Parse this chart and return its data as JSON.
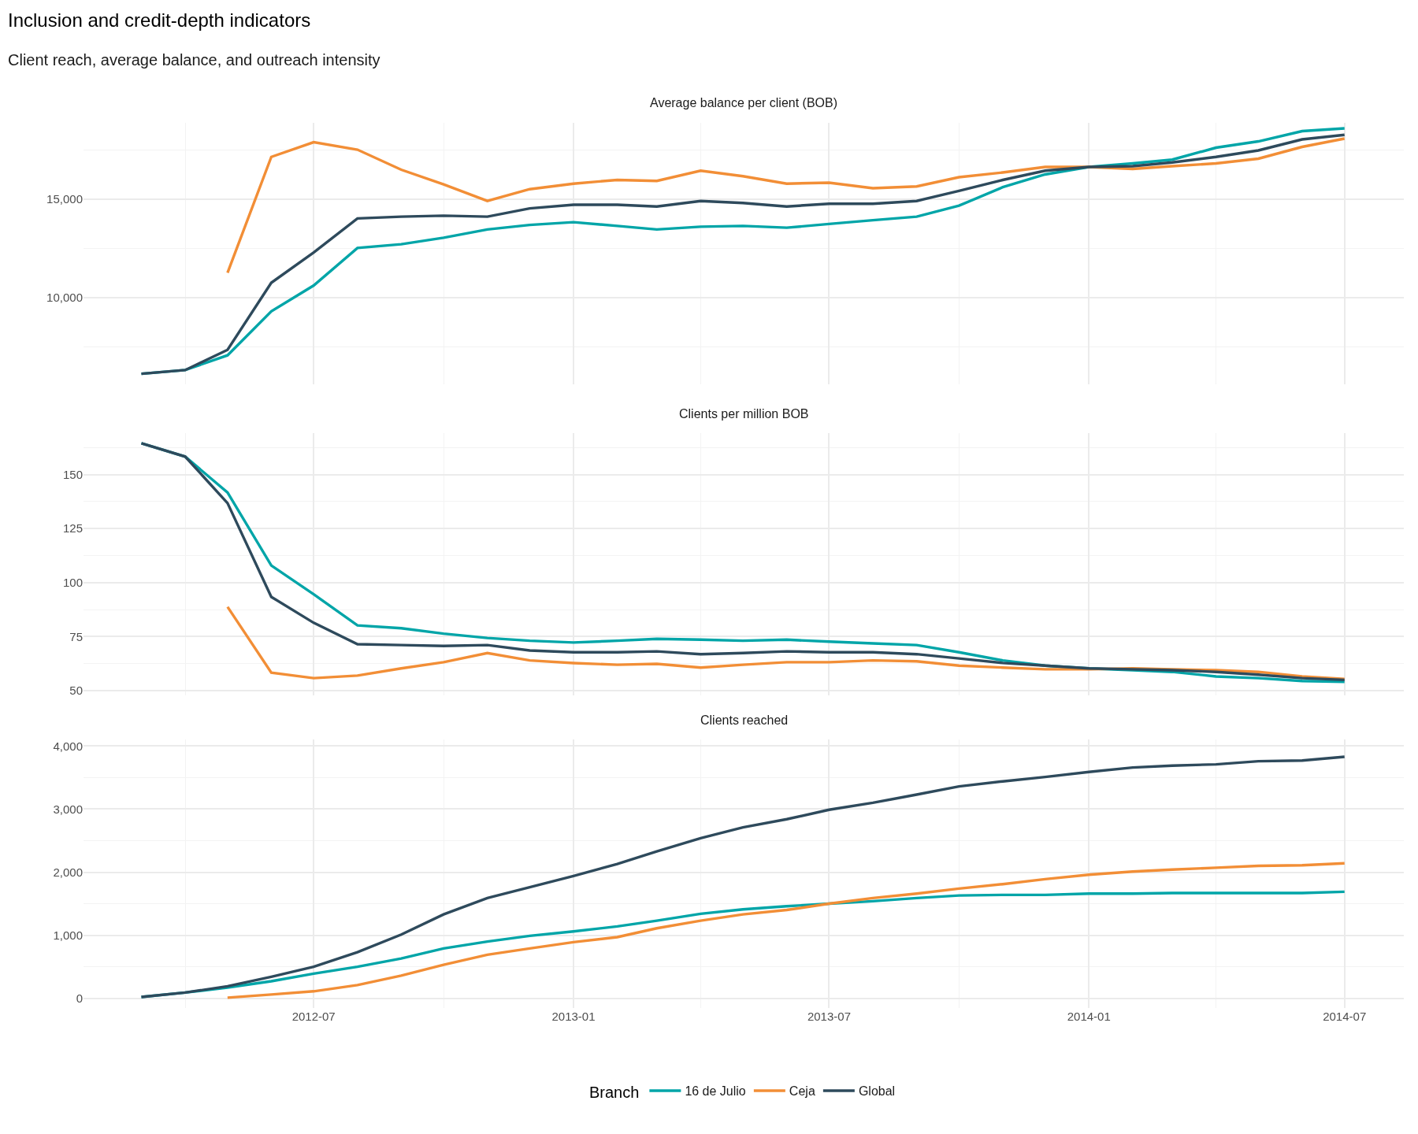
{
  "chart_data": [
    {
      "type": "line",
      "title": "Average balance per client (BOB)",
      "legend_title": "Branch",
      "legend": "bottom",
      "annotations": [
        "Inclusion and credit-depth indicators",
        "Client reach, average balance, and outreach intensity"
      ],
      "x": [
        "2012-03",
        "2012-04",
        "2012-05",
        "2012-06",
        "2012-07",
        "2012-08",
        "2012-09",
        "2012-10",
        "2012-11",
        "2012-12",
        "2013-01",
        "2013-02",
        "2013-03",
        "2013-04",
        "2013-05",
        "2013-06",
        "2013-07",
        "2013-08",
        "2013-09",
        "2013-10",
        "2013-11",
        "2013-12",
        "2014-01",
        "2014-02",
        "2014-03",
        "2014-04",
        "2014-05",
        "2014-06",
        "2014-07"
      ],
      "series": [
        {
          "name": "16 de Julio",
          "color": "#00a5a8",
          "values": [
            6120,
            6310,
            7060,
            9300,
            10610,
            12520,
            12710,
            13040,
            13460,
            13690,
            13830,
            13640,
            13460,
            13600,
            13640,
            13550,
            13740,
            13930,
            14110,
            14670,
            15610,
            16260,
            16640,
            16820,
            17010,
            17620,
            17940,
            18460,
            18600
          ]
        },
        {
          "name": "Ceja",
          "color": "#f28e36",
          "values": [
            null,
            null,
            11260,
            17150,
            17900,
            17520,
            16500,
            15750,
            14910,
            15510,
            15790,
            15980,
            15930,
            16450,
            16170,
            15790,
            15840,
            15560,
            15650,
            16120,
            16360,
            16640,
            16640,
            16540,
            16680,
            16820,
            17060,
            17660,
            18080
          ]
        },
        {
          "name": "Global",
          "color": "#2e4a5c",
          "values": [
            6120,
            6310,
            7340,
            10750,
            12290,
            14020,
            14110,
            14160,
            14110,
            14530,
            14720,
            14720,
            14630,
            14910,
            14810,
            14630,
            14770,
            14770,
            14910,
            15420,
            15980,
            16450,
            16640,
            16680,
            16870,
            17150,
            17480,
            18040,
            18270
          ]
        }
      ],
      "xlim": [
        "2012-01-20",
        "2014-08-12"
      ],
      "xticks": [
        "2012-07",
        "2013-01",
        "2013-07",
        "2014-01",
        "2014-07"
      ],
      "ylim": [
        5600,
        18900
      ],
      "yticks": [
        {
          "value": 10000,
          "label": "10,000"
        },
        {
          "value": 15000,
          "label": "15,000"
        }
      ],
      "grid": true,
      "tick_labels": "y"
    },
    {
      "type": "line",
      "title": "Clients per million BOB",
      "legend": "bottom",
      "x": [
        "2012-03",
        "2012-04",
        "2012-05",
        "2012-06",
        "2012-07",
        "2012-08",
        "2012-09",
        "2012-10",
        "2012-11",
        "2012-12",
        "2013-01",
        "2013-02",
        "2013-03",
        "2013-04",
        "2013-05",
        "2013-06",
        "2013-07",
        "2013-08",
        "2013-09",
        "2013-10",
        "2013-11",
        "2013-12",
        "2014-01",
        "2014-02",
        "2014-03",
        "2014-04",
        "2014-05",
        "2014-06",
        "2014-07"
      ],
      "series": [
        {
          "name": "16 de Julio",
          "color": "#00a5a8",
          "values": [
            164.5,
            158.3,
            141.7,
            107.9,
            94.6,
            80.2,
            78.9,
            76.4,
            74.4,
            73.1,
            72.3,
            73.1,
            74.0,
            73.6,
            73.1,
            73.6,
            72.7,
            71.9,
            71.1,
            67.8,
            64.0,
            61.6,
            60.3,
            59.5,
            58.7,
            56.6,
            55.8,
            54.5,
            54.1
          ]
        },
        {
          "name": "Ceja",
          "color": "#f28e36",
          "values": [
            null,
            null,
            88.8,
            58.3,
            55.8,
            57.0,
            60.3,
            63.2,
            67.4,
            64.0,
            62.8,
            62.0,
            62.4,
            60.7,
            62.0,
            63.2,
            63.2,
            64.0,
            63.6,
            61.6,
            60.7,
            59.9,
            59.9,
            60.3,
            59.9,
            59.5,
            58.7,
            56.6,
            55.4
          ]
        },
        {
          "name": "Global",
          "color": "#2e4a5c",
          "values": [
            164.5,
            158.3,
            136.8,
            93.4,
            81.4,
            71.5,
            71.1,
            70.7,
            71.1,
            68.6,
            67.8,
            67.8,
            68.2,
            66.9,
            67.4,
            68.2,
            67.8,
            67.8,
            66.9,
            64.9,
            62.8,
            61.6,
            60.3,
            59.9,
            59.5,
            58.7,
            57.4,
            55.8,
            55.0
          ]
        }
      ],
      "xlim": [
        "2012-01-20",
        "2014-08-12"
      ],
      "xticks": [
        "2012-07",
        "2013-01",
        "2013-07",
        "2014-01",
        "2014-07"
      ],
      "ylim": [
        48,
        169
      ],
      "yticks": [
        50,
        75,
        100,
        125,
        150
      ],
      "grid": true,
      "tick_labels": "y"
    },
    {
      "type": "line",
      "title": "Clients reached",
      "legend": "bottom",
      "x": [
        "2012-03",
        "2012-04",
        "2012-05",
        "2012-06",
        "2012-07",
        "2012-08",
        "2012-09",
        "2012-10",
        "2012-11",
        "2012-12",
        "2013-01",
        "2013-02",
        "2013-03",
        "2013-04",
        "2013-05",
        "2013-06",
        "2013-07",
        "2013-08",
        "2013-09",
        "2013-10",
        "2013-11",
        "2013-12",
        "2014-01",
        "2014-02",
        "2014-03",
        "2014-04",
        "2014-05",
        "2014-06",
        "2014-07"
      ],
      "series": [
        {
          "name": "16 de Julio",
          "color": "#00a5a8",
          "values": [
            20,
            90,
            170,
            270,
            390,
            500,
            630,
            790,
            900,
            990,
            1060,
            1140,
            1230,
            1340,
            1410,
            1460,
            1500,
            1540,
            1590,
            1630,
            1640,
            1640,
            1660,
            1660,
            1670,
            1670,
            1670,
            1670,
            1690
          ]
        },
        {
          "name": "Ceja",
          "color": "#f28e36",
          "values": [
            null,
            null,
            10,
            60,
            110,
            210,
            360,
            530,
            690,
            790,
            890,
            970,
            1110,
            1230,
            1330,
            1400,
            1500,
            1590,
            1660,
            1740,
            1810,
            1890,
            1960,
            2010,
            2040,
            2070,
            2100,
            2110,
            2140
          ]
        },
        {
          "name": "Global",
          "color": "#2e4a5c",
          "values": [
            20,
            90,
            190,
            340,
            500,
            730,
            1010,
            1330,
            1590,
            1760,
            1940,
            2130,
            2330,
            2540,
            2710,
            2840,
            2990,
            3100,
            3230,
            3360,
            3440,
            3510,
            3590,
            3660,
            3690,
            3710,
            3760,
            3770,
            3830
          ]
        }
      ],
      "xlim": [
        "2012-01-20",
        "2014-08-12"
      ],
      "xticks": [
        "2012-07",
        "2013-01",
        "2013-07",
        "2014-01",
        "2014-07"
      ],
      "ylim": [
        -160,
        4100
      ],
      "yticks": [
        0,
        {
          "value": 1000,
          "label": "1,000"
        },
        {
          "value": 2000,
          "label": "2,000"
        },
        {
          "value": 3000,
          "label": "3,000"
        },
        {
          "value": 4000,
          "label": "4,000"
        }
      ],
      "grid": true
    }
  ]
}
